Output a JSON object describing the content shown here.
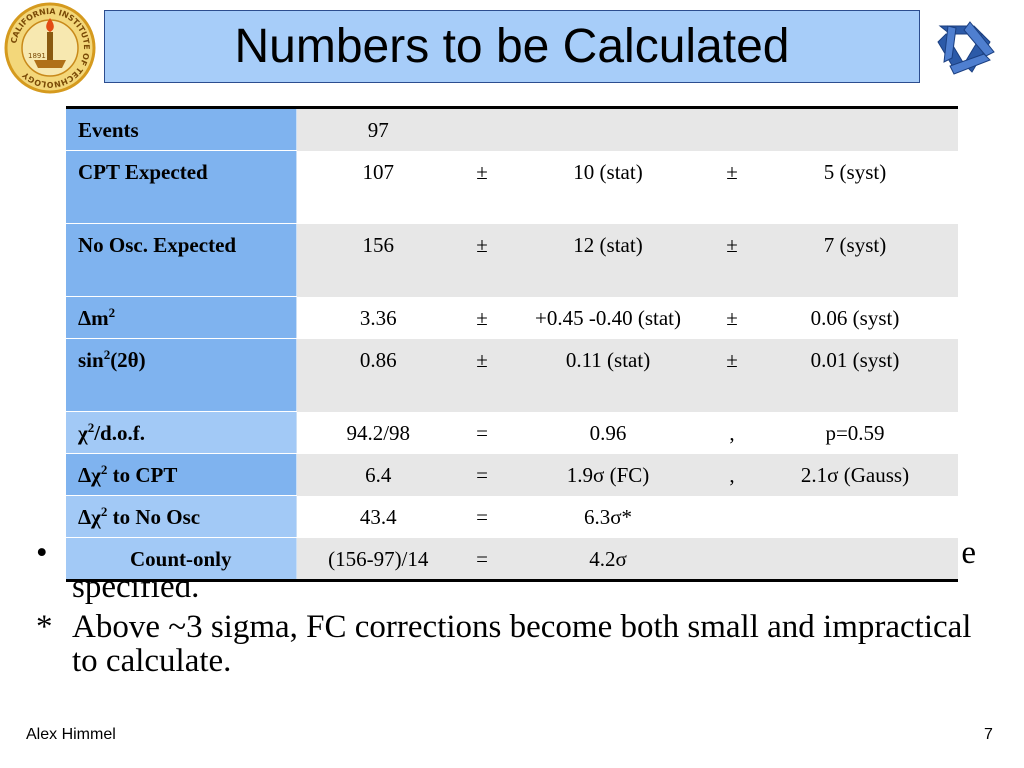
{
  "title": "Numbers to be Calculated",
  "logos": {
    "left": "caltech-seal",
    "right": "minos-logo",
    "left_ring_text": "CALIFORNIA INSTITUTE OF TECHNOLOGY",
    "left_year": "1891"
  },
  "table": {
    "rows": [
      {
        "label": "Events",
        "v1": "97",
        "s1": "",
        "v2": "",
        "s2": "",
        "v3": ""
      },
      {
        "label": "CPT Expected",
        "v1": "107",
        "s1": "±",
        "v2": "10 (stat)",
        "s2": "±",
        "v3": "5 (syst)"
      },
      {
        "label": "No Osc. Expected",
        "v1": "156",
        "s1": "±",
        "v2": "12 (stat)",
        "s2": "±",
        "v3": "7 (syst)"
      },
      {
        "label_pre": "Δm",
        "label_sup": "2",
        "label_post": "",
        "v1": "3.36",
        "s1": "±",
        "v2": "+0.45 -0.40 (stat)",
        "s2": "±",
        "v3": "0.06 (syst)"
      },
      {
        "label_pre": "sin",
        "label_sup": "2",
        "label_post": "(2θ)",
        "v1": "0.86",
        "s1": "±",
        "v2": "0.11 (stat)",
        "s2": "±",
        "v3": "0.01 (syst)"
      },
      {
        "label_pre": "χ",
        "label_sup": "2",
        "label_post": "/d.o.f.",
        "v1": "94.2/98",
        "s1": "=",
        "v2": "0.96",
        "s2": ",",
        "v3": "p=0.59"
      },
      {
        "label_pre": "Δχ",
        "label_sup": "2",
        "label_post": " to CPT",
        "v1": "6.4",
        "s1": "=",
        "v2": "1.9σ (FC)",
        "s2": ",",
        "v3": "2.1σ (Gauss)"
      },
      {
        "label_pre": "Δχ",
        "label_sup": "2",
        "label_post": " to No Osc",
        "v1": "43.4",
        "s1": "=",
        "v2": "6.3σ*",
        "s2": "",
        "v3": ""
      },
      {
        "label": "Count-only",
        "v1": "(156-97)/14",
        "s1": "=",
        "v2": "4.2σ",
        "s2": "",
        "v3": ""
      }
    ]
  },
  "bullets": [
    {
      "marker": "•",
      "text_end": "e",
      "text_line2": "specified."
    },
    {
      "marker": "*",
      "text": "Above ~3 sigma, FC corrections become both small and impractical to calculate."
    }
  ],
  "footer": {
    "author": "Alex Himmel",
    "page": "7"
  }
}
